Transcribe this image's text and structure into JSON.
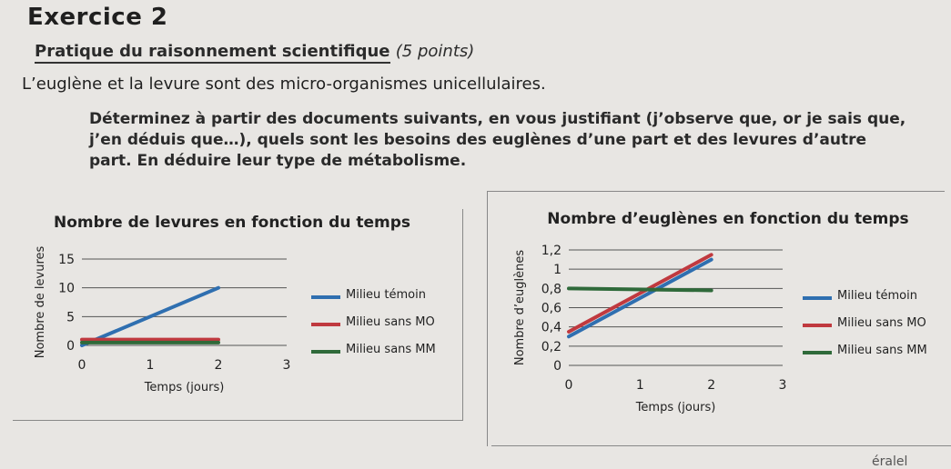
{
  "exercise": {
    "title": "Exercice 2",
    "subtitle": "Pratique du raisonnement scientifique",
    "points": "(5 points)",
    "intro": "L’euglène et la levure sont des micro-organismes unicellulaires.",
    "instruction": "Déterminez à partir des documents suivants, en vous justifiant (j’observe que, or je sais que, j’en déduis que…), quels sont les besoins des euglènes d’une part et des levures d’autre part. En déduire leur type de métabolisme."
  },
  "corner_text": "éralel",
  "colors": {
    "blue": "#2f6fb0",
    "red": "#c0393f",
    "green": "#2f6a3a"
  },
  "chart_data": [
    {
      "type": "line",
      "title": "Nombre de levures en fonction du temps",
      "xlabel": "Temps (jours)",
      "ylabel": "Nombre de levures",
      "x_ticks": [
        "0",
        "1",
        "2",
        "3"
      ],
      "y_ticks": [
        "0",
        "5",
        "10",
        "15"
      ],
      "x": [
        0,
        2
      ],
      "ylim": [
        0,
        15
      ],
      "xlim": [
        0,
        3
      ],
      "series": [
        {
          "name": "Milieu témoin",
          "color": "#2f6fb0",
          "values": [
            0,
            10
          ]
        },
        {
          "name": "Milieu sans MO",
          "color": "#c0393f",
          "values": [
            1,
            1
          ]
        },
        {
          "name": "Milieu sans MM",
          "color": "#2f6a3a",
          "values": [
            0.5,
            0.5
          ]
        }
      ],
      "legend": "right"
    },
    {
      "type": "line",
      "title": "Nombre d’euglènes en fonction du temps",
      "xlabel": "Temps (jours)",
      "ylabel": "Nombre d’euglènes",
      "x_ticks": [
        "0",
        "1",
        "2",
        "3"
      ],
      "y_ticks": [
        "0",
        "0,2",
        "0,4",
        "0,6",
        "0,8",
        "1",
        "1,2"
      ],
      "x": [
        0,
        2
      ],
      "ylim": [
        0,
        1.2
      ],
      "xlim": [
        0,
        3
      ],
      "series": [
        {
          "name": "Milieu témoin",
          "color": "#2f6fb0",
          "values": [
            0.3,
            1.1
          ]
        },
        {
          "name": "Milieu sans MO",
          "color": "#c0393f",
          "values": [
            0.35,
            1.15
          ]
        },
        {
          "name": "Milieu sans MM",
          "color": "#2f6a3a",
          "values": [
            0.8,
            0.78
          ]
        }
      ],
      "legend": "right"
    }
  ]
}
